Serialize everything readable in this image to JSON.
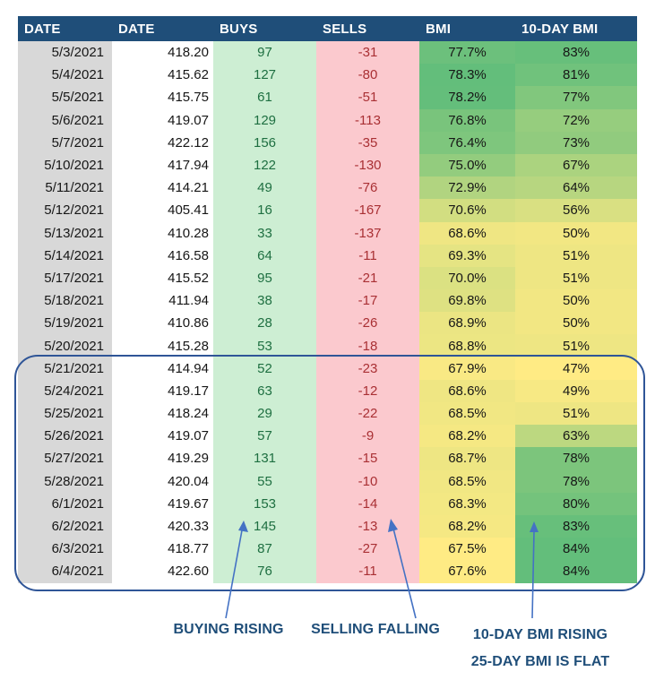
{
  "colors": {
    "header_bg": "#1F4E79",
    "header_text": "#FFFFFF",
    "date_bg": "#D8D8D8",
    "buys_bg": "#CDEED3",
    "buys_text": "#1E6F41",
    "sells_bg": "#FBC9CE",
    "sells_text": "#A93034",
    "scale_low": "#FFEB84",
    "scale_high": "#63BE7B",
    "box_stroke": "#2F5597",
    "ann_text": "#1F4E79",
    "arrow": "#4472C4"
  },
  "annotations": {
    "buying": "BUYING RISING",
    "selling": "SELLING FALLING",
    "bmi10_l1": "10-DAY BMI RISING",
    "bmi10_l2": "25-DAY BMI IS FLAT"
  },
  "chart_data": {
    "type": "table",
    "title": "",
    "columns": [
      "DATE",
      "DATE",
      "BUYS",
      "SELLS",
      "BMI",
      "10-DAY BMI"
    ],
    "rows": [
      [
        "5/3/2021",
        "418.20",
        "97",
        "-31",
        "77.7%",
        "83%"
      ],
      [
        "5/4/2021",
        "415.62",
        "127",
        "-80",
        "78.3%",
        "81%"
      ],
      [
        "5/5/2021",
        "415.75",
        "61",
        "-51",
        "78.2%",
        "77%"
      ],
      [
        "5/6/2021",
        "419.07",
        "129",
        "-113",
        "76.8%",
        "72%"
      ],
      [
        "5/7/2021",
        "422.12",
        "156",
        "-35",
        "76.4%",
        "73%"
      ],
      [
        "5/10/2021",
        "417.94",
        "122",
        "-130",
        "75.0%",
        "67%"
      ],
      [
        "5/11/2021",
        "414.21",
        "49",
        "-76",
        "72.9%",
        "64%"
      ],
      [
        "5/12/2021",
        "405.41",
        "16",
        "-167",
        "70.6%",
        "56%"
      ],
      [
        "5/13/2021",
        "410.28",
        "33",
        "-137",
        "68.6%",
        "50%"
      ],
      [
        "5/14/2021",
        "416.58",
        "64",
        "-11",
        "69.3%",
        "51%"
      ],
      [
        "5/17/2021",
        "415.52",
        "95",
        "-21",
        "70.0%",
        "51%"
      ],
      [
        "5/18/2021",
        "411.94",
        "38",
        "-17",
        "69.8%",
        "50%"
      ],
      [
        "5/19/2021",
        "410.86",
        "28",
        "-26",
        "68.9%",
        "50%"
      ],
      [
        "5/20/2021",
        "415.28",
        "53",
        "-18",
        "68.8%",
        "51%"
      ],
      [
        "5/21/2021",
        "414.94",
        "52",
        "-23",
        "67.9%",
        "47%"
      ],
      [
        "5/24/2021",
        "419.17",
        "63",
        "-12",
        "68.6%",
        "49%"
      ],
      [
        "5/25/2021",
        "418.24",
        "29",
        "-22",
        "68.5%",
        "51%"
      ],
      [
        "5/26/2021",
        "419.07",
        "57",
        "-9",
        "68.2%",
        "63%"
      ],
      [
        "5/27/2021",
        "419.29",
        "131",
        "-15",
        "68.7%",
        "78%"
      ],
      [
        "5/28/2021",
        "420.04",
        "55",
        "-10",
        "68.5%",
        "78%"
      ],
      [
        "6/1/2021",
        "419.67",
        "153",
        "-14",
        "68.3%",
        "80%"
      ],
      [
        "6/2/2021",
        "420.33",
        "145",
        "-13",
        "68.2%",
        "83%"
      ],
      [
        "6/3/2021",
        "418.77",
        "87",
        "-27",
        "67.5%",
        "84%"
      ],
      [
        "6/4/2021",
        "422.60",
        "76",
        "-11",
        "67.6%",
        "84%"
      ]
    ],
    "color_scales": {
      "bmi": {
        "min": 67.5,
        "max": 78.3
      },
      "bmi10": {
        "min": 47,
        "max": 84
      }
    },
    "highlighted_rows": [
      "5/21/2021",
      "6/4/2021"
    ],
    "annotations": [
      "BUYING RISING",
      "SELLING FALLING",
      "10-DAY BMI RISING",
      "25-DAY BMI IS FLAT"
    ]
  }
}
